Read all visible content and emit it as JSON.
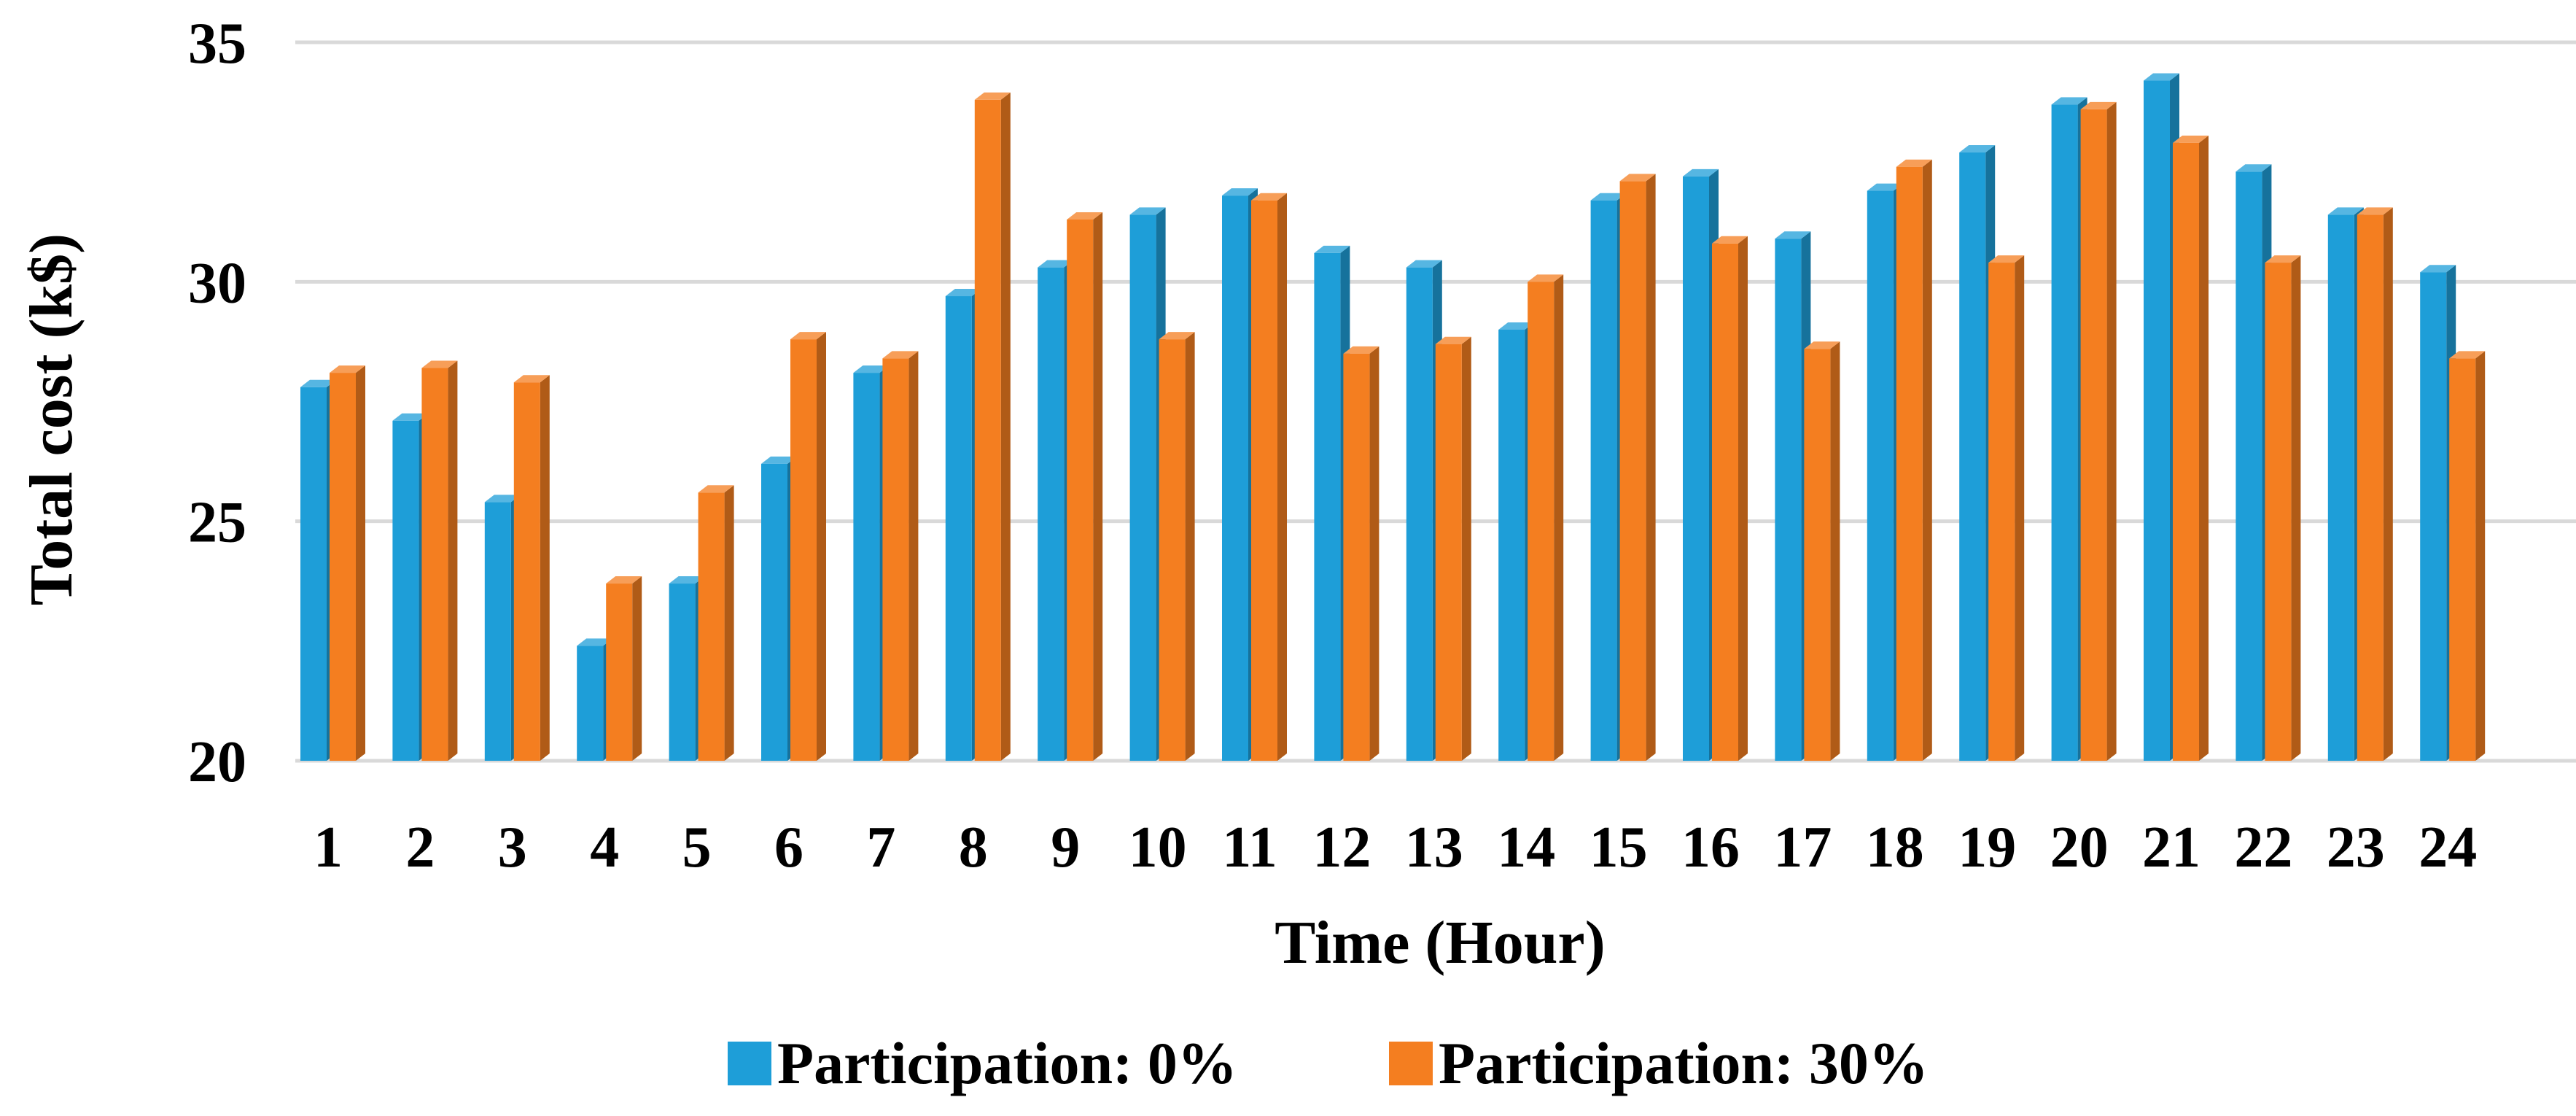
{
  "chart_data": {
    "type": "bar",
    "title": "",
    "xlabel": "Time (Hour)",
    "ylabel": "Total cost (k$)",
    "ylim": [
      20,
      35
    ],
    "yticks": [
      "20",
      "25",
      "30",
      "35"
    ],
    "grid": true,
    "legend_position": "bottom",
    "categories": [
      "1",
      "2",
      "3",
      "4",
      "5",
      "6",
      "7",
      "8",
      "9",
      "10",
      "11",
      "12",
      "13",
      "14",
      "15",
      "16",
      "17",
      "18",
      "19",
      "20",
      "21",
      "22",
      "23",
      "24"
    ],
    "series": [
      {
        "name": "Participation: 0%",
        "color": "#1E9ED8",
        "values": [
          27.8,
          27.1,
          25.4,
          22.4,
          23.7,
          26.2,
          28.1,
          29.7,
          30.3,
          31.4,
          31.8,
          30.6,
          30.3,
          29.0,
          31.7,
          32.2,
          30.9,
          31.9,
          32.7,
          33.7,
          34.2,
          32.3,
          31.4,
          30.2
        ]
      },
      {
        "name": "Participation: 30%",
        "color": "#F47E20",
        "values": [
          28.1,
          28.2,
          27.9,
          23.7,
          25.6,
          28.8,
          28.4,
          33.8,
          31.3,
          28.8,
          31.7,
          28.5,
          28.7,
          30.0,
          32.1,
          30.8,
          28.6,
          32.4,
          30.4,
          33.6,
          32.9,
          30.4,
          31.4,
          28.4
        ]
      }
    ]
  }
}
